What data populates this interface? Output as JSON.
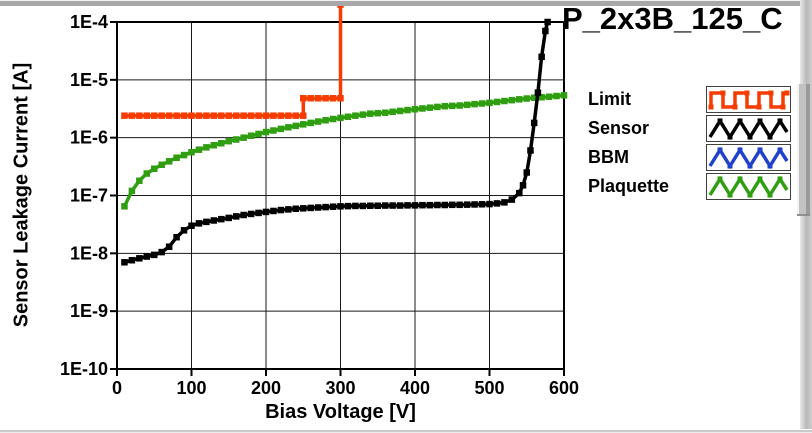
{
  "window": {
    "title": "P_2x3B_125_C"
  },
  "chart_data": {
    "type": "line",
    "title": "P_2x3B_125_C",
    "xlabel": "Bias Voltage [V]",
    "ylabel": "Sensor Leakage Current [A]",
    "xlim": [
      0,
      600
    ],
    "ylim": [
      1e-10,
      0.0001
    ],
    "y_log_scale": true,
    "grid": true,
    "x_ticks": [
      0,
      100,
      200,
      300,
      400,
      500,
      600
    ],
    "y_ticks": [
      {
        "label": "1E-4",
        "value": 0.0001
      },
      {
        "label": "1E-5",
        "value": 1e-05
      },
      {
        "label": "1E-6",
        "value": 1e-06
      },
      {
        "label": "1E-7",
        "value": 1e-07
      },
      {
        "label": "1E-8",
        "value": 1e-08
      },
      {
        "label": "1E-9",
        "value": 1e-09
      },
      {
        "label": "1E-10",
        "value": 1e-10
      }
    ],
    "legend_position": "right",
    "series": [
      {
        "name": "Limit",
        "color": "#f63c00",
        "legend_icon": "square-wave",
        "points": [
          [
            10,
            2.4e-06
          ],
          [
            20,
            2.4e-06
          ],
          [
            30,
            2.4e-06
          ],
          [
            40,
            2.4e-06
          ],
          [
            50,
            2.4e-06
          ],
          [
            60,
            2.4e-06
          ],
          [
            70,
            2.4e-06
          ],
          [
            80,
            2.4e-06
          ],
          [
            90,
            2.4e-06
          ],
          [
            100,
            2.4e-06
          ],
          [
            110,
            2.4e-06
          ],
          [
            120,
            2.4e-06
          ],
          [
            130,
            2.4e-06
          ],
          [
            140,
            2.4e-06
          ],
          [
            150,
            2.4e-06
          ],
          [
            160,
            2.4e-06
          ],
          [
            170,
            2.4e-06
          ],
          [
            180,
            2.4e-06
          ],
          [
            190,
            2.4e-06
          ],
          [
            200,
            2.4e-06
          ],
          [
            210,
            2.4e-06
          ],
          [
            220,
            2.4e-06
          ],
          [
            230,
            2.4e-06
          ],
          [
            240,
            2.4e-06
          ],
          [
            250,
            2.4e-06
          ],
          [
            250,
            4.8e-06
          ],
          [
            260,
            4.8e-06
          ],
          [
            270,
            4.8e-06
          ],
          [
            280,
            4.8e-06
          ],
          [
            290,
            4.8e-06
          ],
          [
            300,
            4.8e-06
          ],
          [
            300,
            0.0002
          ]
        ]
      },
      {
        "name": "Sensor",
        "color": "#000000",
        "legend_icon": "triangle-wave",
        "points": [
          [
            10,
            7e-09
          ],
          [
            20,
            7.6e-09
          ],
          [
            30,
            8.2e-09
          ],
          [
            40,
            8.8e-09
          ],
          [
            50,
            9.4e-09
          ],
          [
            60,
            1.05e-08
          ],
          [
            70,
            1.3e-08
          ],
          [
            80,
            1.9e-08
          ],
          [
            90,
            2.5e-08
          ],
          [
            100,
            3e-08
          ],
          [
            110,
            3.3e-08
          ],
          [
            120,
            3.5e-08
          ],
          [
            130,
            3.7e-08
          ],
          [
            140,
            3.9e-08
          ],
          [
            150,
            4.1e-08
          ],
          [
            160,
            4.35e-08
          ],
          [
            170,
            4.6e-08
          ],
          [
            180,
            4.8e-08
          ],
          [
            190,
            5e-08
          ],
          [
            200,
            5.2e-08
          ],
          [
            210,
            5.4e-08
          ],
          [
            220,
            5.6e-08
          ],
          [
            230,
            5.75e-08
          ],
          [
            240,
            5.9e-08
          ],
          [
            250,
            6e-08
          ],
          [
            260,
            6.1e-08
          ],
          [
            270,
            6.2e-08
          ],
          [
            280,
            6.3e-08
          ],
          [
            290,
            6.4e-08
          ],
          [
            300,
            6.5e-08
          ],
          [
            310,
            6.55e-08
          ],
          [
            320,
            6.6e-08
          ],
          [
            330,
            6.6e-08
          ],
          [
            340,
            6.65e-08
          ],
          [
            350,
            6.65e-08
          ],
          [
            360,
            6.7e-08
          ],
          [
            370,
            6.7e-08
          ],
          [
            380,
            6.7e-08
          ],
          [
            390,
            6.75e-08
          ],
          [
            400,
            6.75e-08
          ],
          [
            410,
            6.8e-08
          ],
          [
            420,
            6.8e-08
          ],
          [
            430,
            6.85e-08
          ],
          [
            440,
            6.85e-08
          ],
          [
            450,
            6.9e-08
          ],
          [
            460,
            6.9e-08
          ],
          [
            470,
            6.95e-08
          ],
          [
            480,
            7e-08
          ],
          [
            490,
            7.05e-08
          ],
          [
            500,
            7.1e-08
          ],
          [
            510,
            7.3e-08
          ],
          [
            520,
            7.6e-08
          ],
          [
            530,
            8.5e-08
          ],
          [
            540,
            1.1e-07
          ],
          [
            545,
            1.5e-07
          ],
          [
            550,
            2.5e-07
          ],
          [
            555,
            6e-07
          ],
          [
            560,
            1.8e-06
          ],
          [
            565,
            6e-06
          ],
          [
            570,
            2.5e-05
          ],
          [
            575,
            7e-05
          ],
          [
            578,
            0.0001
          ]
        ]
      },
      {
        "name": "BBM",
        "color": "#2041cc",
        "legend_icon": "triangle-wave",
        "points": []
      },
      {
        "name": "Plaquette",
        "color": "#2f9e11",
        "legend_icon": "triangle-wave",
        "points": [
          [
            10,
            6.5e-08
          ],
          [
            20,
            1.2e-07
          ],
          [
            30,
            1.8e-07
          ],
          [
            40,
            2.4e-07
          ],
          [
            50,
            2.9e-07
          ],
          [
            60,
            3.4e-07
          ],
          [
            70,
            3.9e-07
          ],
          [
            80,
            4.5e-07
          ],
          [
            90,
            5e-07
          ],
          [
            100,
            5.6e-07
          ],
          [
            110,
            6.2e-07
          ],
          [
            120,
            6.8e-07
          ],
          [
            130,
            7.4e-07
          ],
          [
            140,
            8e-07
          ],
          [
            150,
            8.7e-07
          ],
          [
            160,
            9.3e-07
          ],
          [
            170,
            1e-06
          ],
          [
            180,
            1.08e-06
          ],
          [
            190,
            1.16e-06
          ],
          [
            200,
            1.25e-06
          ],
          [
            210,
            1.33e-06
          ],
          [
            220,
            1.42e-06
          ],
          [
            230,
            1.51e-06
          ],
          [
            240,
            1.6e-06
          ],
          [
            250,
            1.7e-06
          ],
          [
            260,
            1.8e-06
          ],
          [
            270,
            1.9e-06
          ],
          [
            280,
            2e-06
          ],
          [
            290,
            2.1e-06
          ],
          [
            300,
            2.2e-06
          ],
          [
            310,
            2.3e-06
          ],
          [
            320,
            2.4e-06
          ],
          [
            330,
            2.5e-06
          ],
          [
            340,
            2.6e-06
          ],
          [
            350,
            2.65e-06
          ],
          [
            360,
            2.7e-06
          ],
          [
            370,
            2.8e-06
          ],
          [
            380,
            2.9e-06
          ],
          [
            390,
            3e-06
          ],
          [
            400,
            3.1e-06
          ],
          [
            410,
            3.2e-06
          ],
          [
            420,
            3.3e-06
          ],
          [
            430,
            3.4e-06
          ],
          [
            440,
            3.5e-06
          ],
          [
            450,
            3.55e-06
          ],
          [
            460,
            3.6e-06
          ],
          [
            470,
            3.7e-06
          ],
          [
            480,
            3.8e-06
          ],
          [
            490,
            3.9e-06
          ],
          [
            500,
            4e-06
          ],
          [
            510,
            4.15e-06
          ],
          [
            520,
            4.3e-06
          ],
          [
            530,
            4.45e-06
          ],
          [
            540,
            4.6e-06
          ],
          [
            550,
            4.75e-06
          ],
          [
            560,
            4.9e-06
          ],
          [
            570,
            5e-06
          ],
          [
            580,
            5.1e-06
          ],
          [
            590,
            5.25e-06
          ],
          [
            600,
            5.4e-06
          ]
        ]
      }
    ]
  },
  "legend": {
    "entries": [
      "Limit",
      "Sensor",
      "BBM",
      "Plaquette"
    ]
  }
}
